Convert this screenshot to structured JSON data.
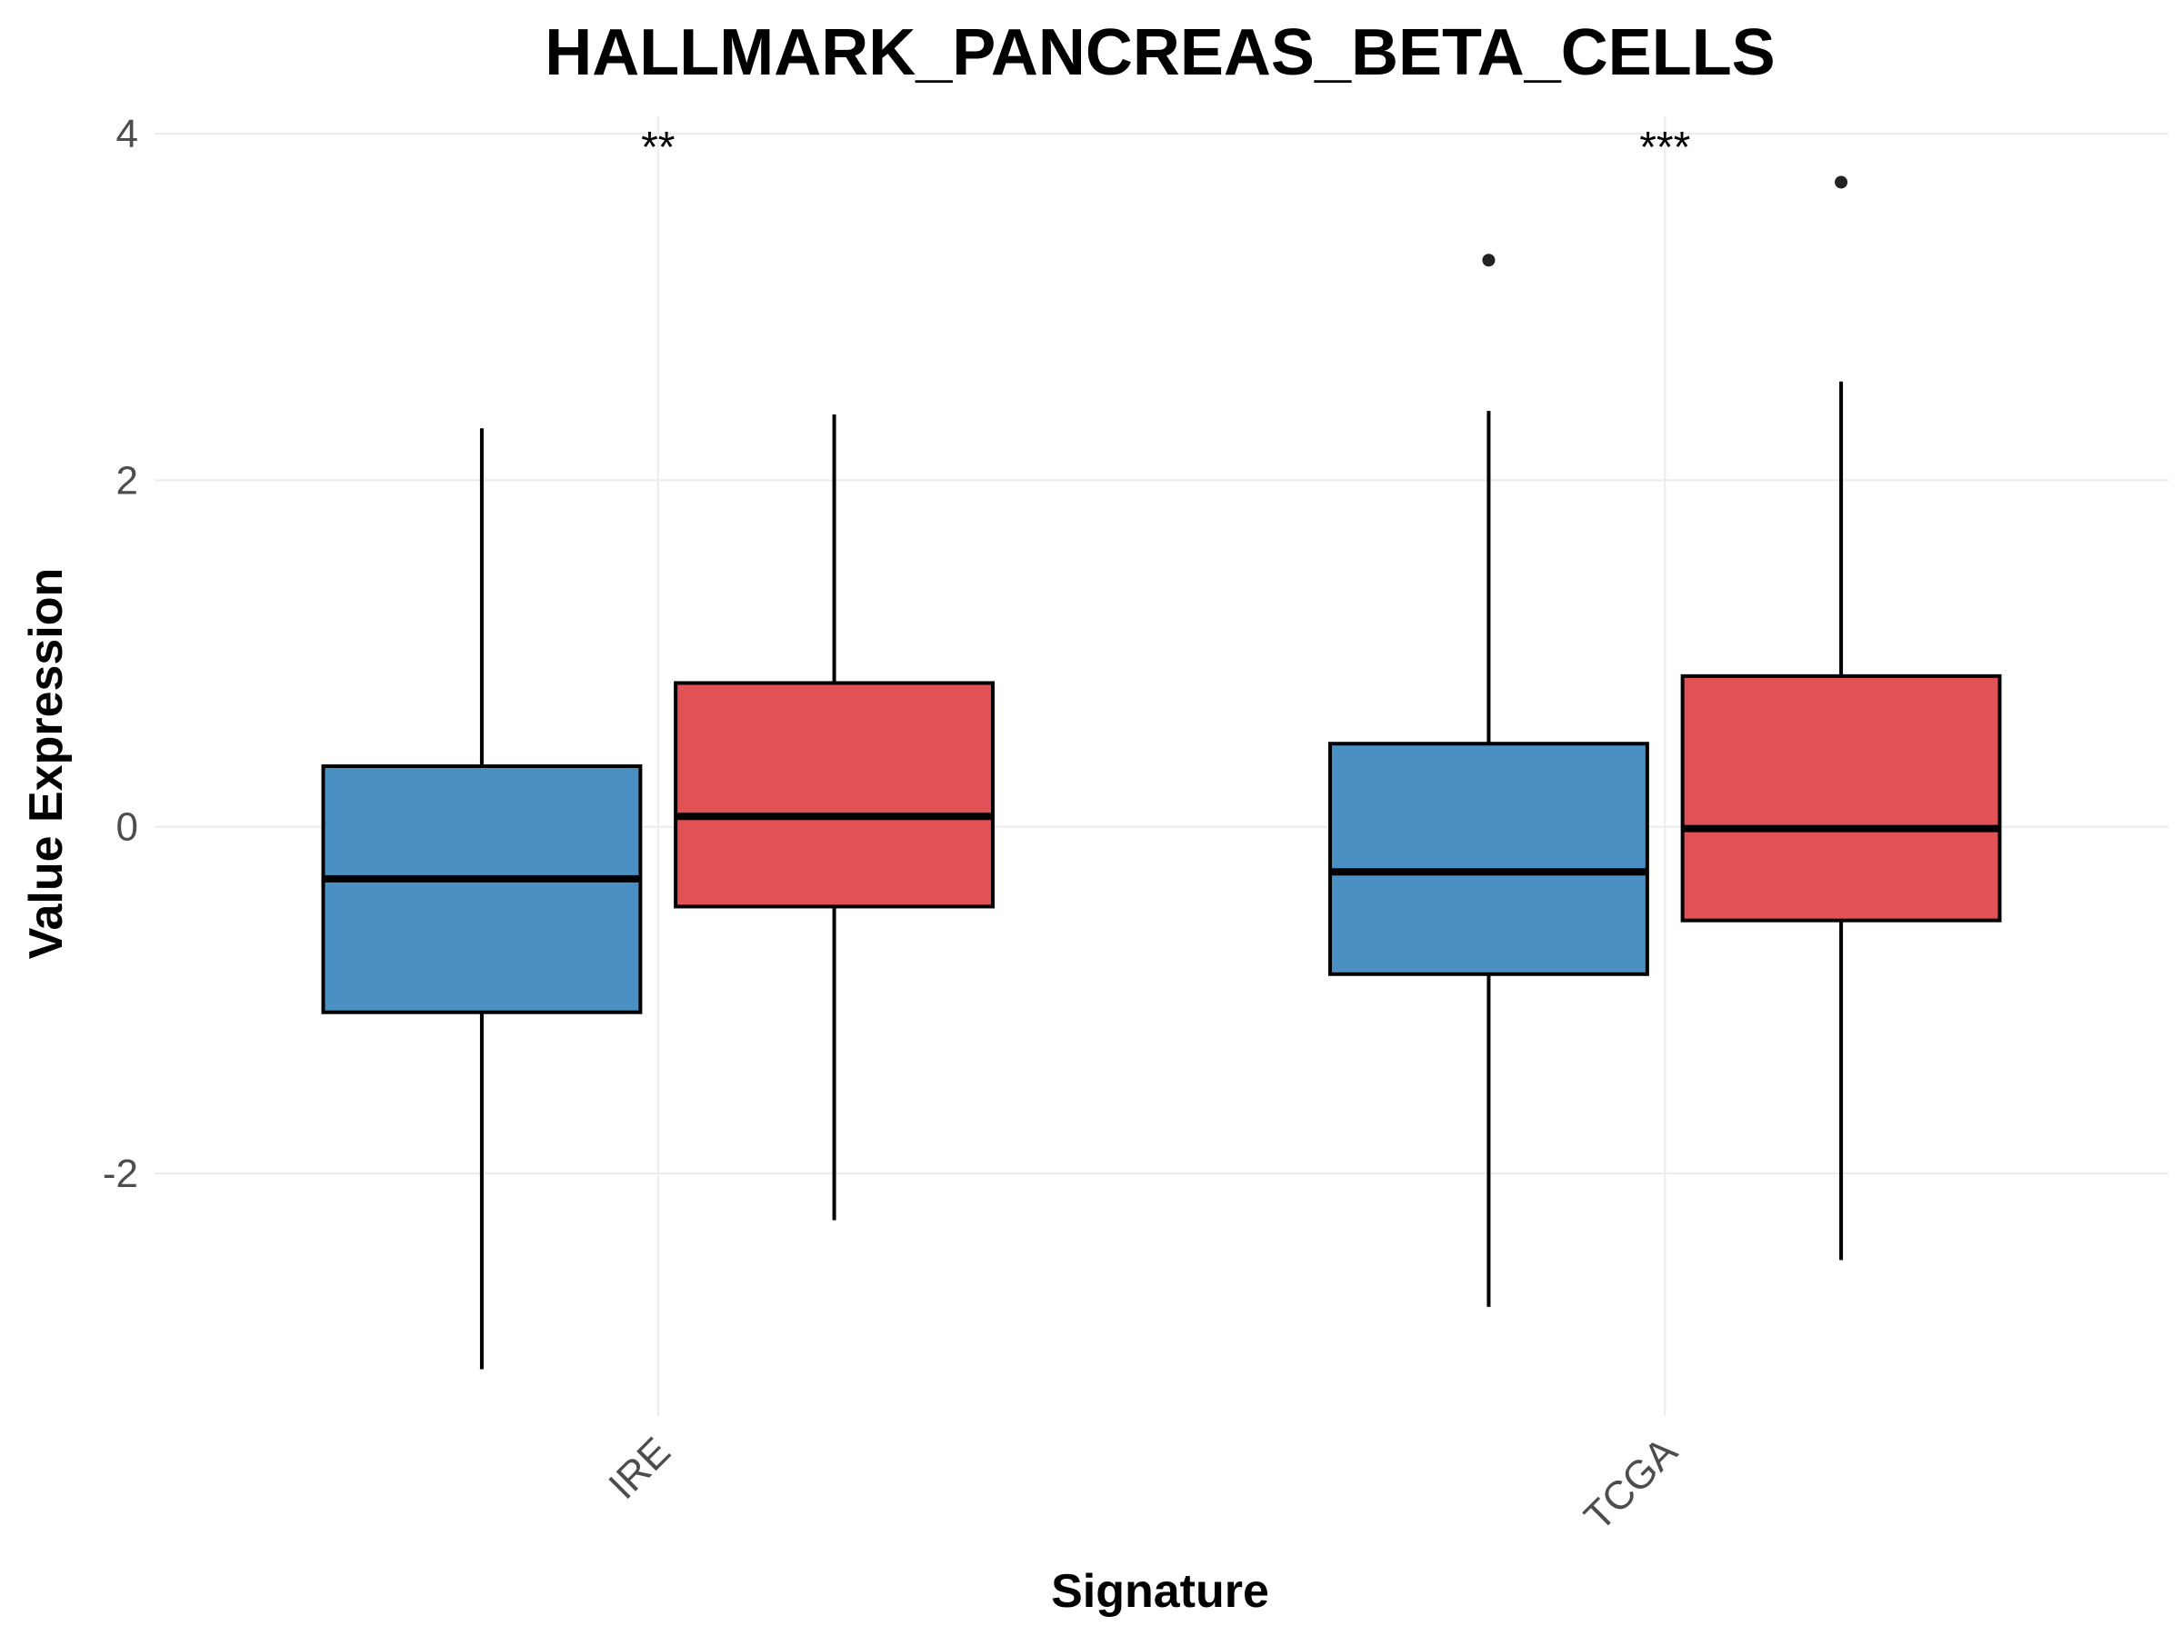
{
  "chart_data": {
    "type": "boxplot",
    "title": "HALLMARK_PANCREAS_BETA_CELLS",
    "xlabel": "Signature",
    "ylabel": "Value Expression",
    "ylim": [
      -3.4,
      4.1
    ],
    "yticks": [
      -2,
      0,
      2,
      4
    ],
    "grid": true,
    "legend": "none",
    "categories": [
      "IRE",
      "TCGA"
    ],
    "groups": [
      {
        "category": "IRE",
        "significance": "**",
        "boxes": [
          {
            "color": "#4a90c2",
            "q1": -1.07,
            "median": -0.3,
            "q3": 0.35,
            "whisker_low": -3.13,
            "whisker_high": 2.3,
            "outliers": []
          },
          {
            "color": "#e05255",
            "q1": -0.46,
            "median": 0.06,
            "q3": 0.83,
            "whisker_low": -2.27,
            "whisker_high": 2.38,
            "outliers": []
          }
        ]
      },
      {
        "category": "TCGA",
        "significance": "***",
        "boxes": [
          {
            "color": "#4a90c2",
            "q1": -0.85,
            "median": -0.26,
            "q3": 0.48,
            "whisker_low": -2.77,
            "whisker_high": 2.4,
            "outliers": [
              3.27
            ]
          },
          {
            "color": "#e05255",
            "q1": -0.54,
            "median": -0.01,
            "q3": 0.87,
            "whisker_low": -2.5,
            "whisker_high": 2.57,
            "outliers": [
              3.72
            ]
          }
        ]
      }
    ]
  }
}
